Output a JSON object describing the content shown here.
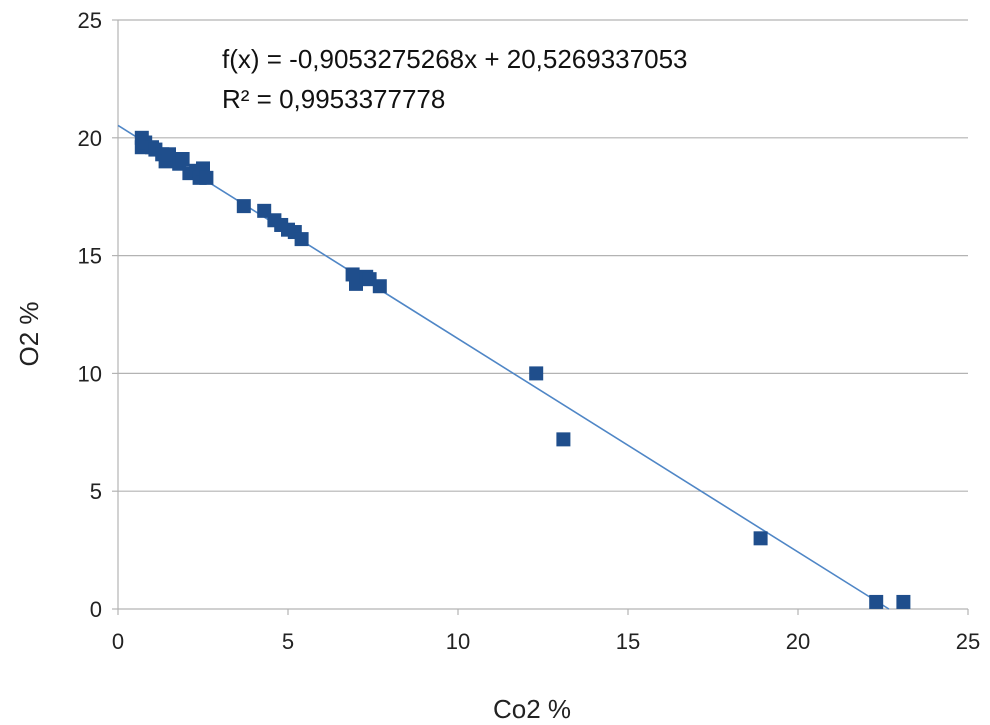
{
  "chart_data": {
    "type": "scatter",
    "xlabel": "Co2 %",
    "ylabel": "O2 %",
    "xlim": [
      0,
      25
    ],
    "ylim": [
      0,
      25
    ],
    "x_ticks": [
      0,
      5,
      10,
      15,
      20,
      25
    ],
    "y_ticks": [
      0,
      5,
      10,
      15,
      20,
      25
    ],
    "grid": {
      "horizontal": true,
      "vertical": false
    },
    "marker_color": "#1f4e8c",
    "trendline_color": "#4f86c6",
    "trendline": {
      "slope": -0.9053275268,
      "intercept": 20.5269337053,
      "equation_label": "f(x) = -0,9053275268x + 20,5269337053",
      "r2_label": "R² = 0,9953377778"
    },
    "series": [
      {
        "points": [
          [
            0.7,
            20.0
          ],
          [
            0.7,
            19.6
          ],
          [
            0.8,
            19.8
          ],
          [
            1.0,
            19.6
          ],
          [
            1.1,
            19.5
          ],
          [
            1.3,
            19.3
          ],
          [
            1.4,
            19.0
          ],
          [
            1.5,
            19.3
          ],
          [
            1.8,
            18.9
          ],
          [
            1.9,
            19.1
          ],
          [
            2.1,
            18.5
          ],
          [
            2.3,
            18.6
          ],
          [
            2.4,
            18.3
          ],
          [
            2.5,
            18.7
          ],
          [
            2.6,
            18.3
          ],
          [
            3.7,
            17.1
          ],
          [
            4.3,
            16.9
          ],
          [
            4.6,
            16.5
          ],
          [
            4.8,
            16.3
          ],
          [
            5.0,
            16.1
          ],
          [
            5.2,
            16.0
          ],
          [
            5.4,
            15.7
          ],
          [
            6.9,
            14.2
          ],
          [
            7.0,
            13.8
          ],
          [
            7.3,
            14.1
          ],
          [
            7.4,
            14.0
          ],
          [
            7.7,
            13.7
          ],
          [
            12.3,
            10.0
          ],
          [
            13.1,
            7.2
          ],
          [
            18.9,
            3.0
          ],
          [
            22.3,
            0.3
          ],
          [
            23.1,
            0.3
          ]
        ]
      }
    ]
  }
}
